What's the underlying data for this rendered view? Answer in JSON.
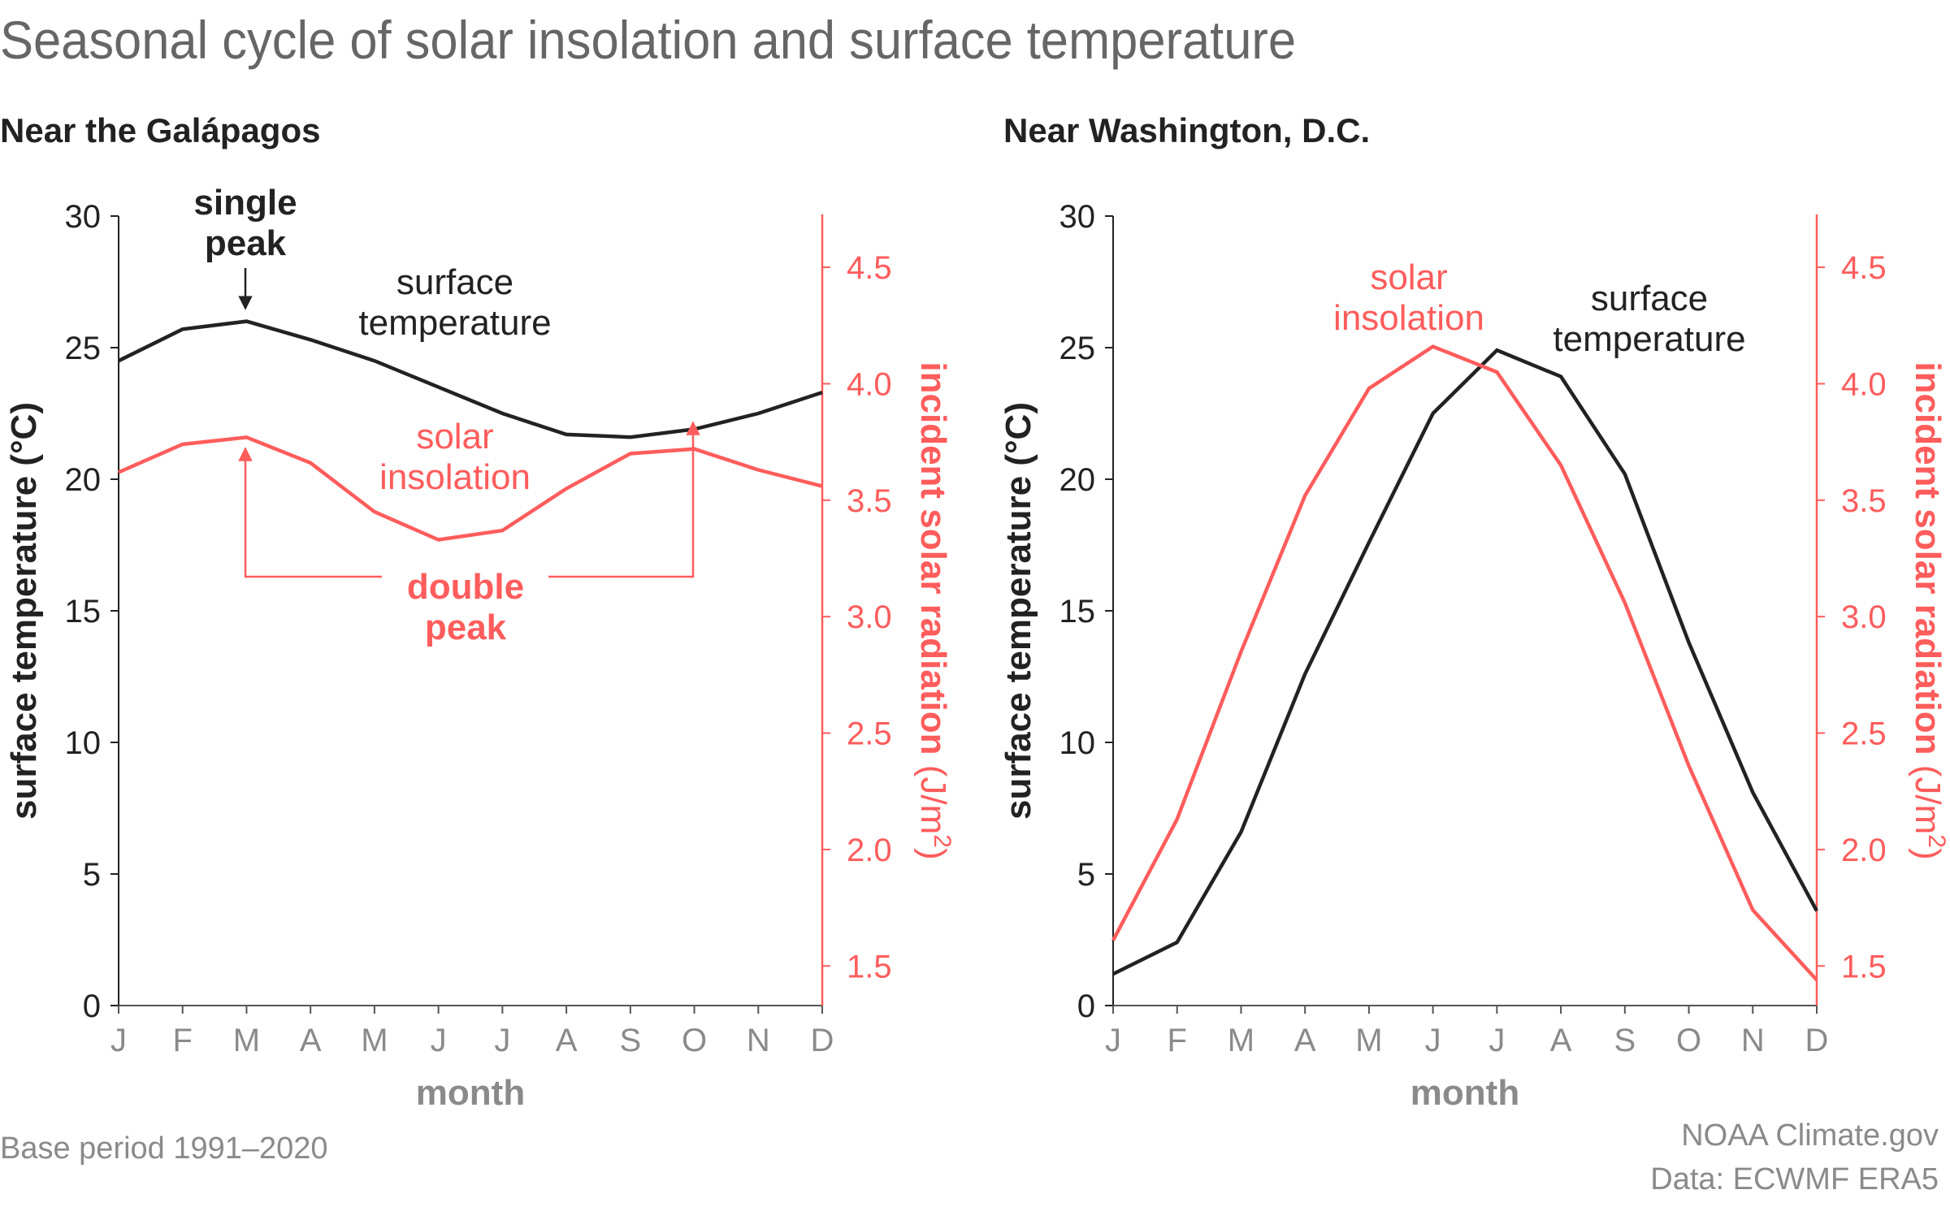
{
  "title": "Seasonal cycle of solar insolation and surface temperature",
  "footer": {
    "base_period": "Base period 1991–2020",
    "credit": "NOAA Climate.gov",
    "data_source": "Data: ECWMF ERA5"
  },
  "colors": {
    "temperature": "#222222",
    "insolation": "#ff5c5c",
    "muted": "#8a8a8a"
  },
  "chart_data": [
    {
      "type": "line",
      "subtitle": "Near the Galápagos",
      "categories": [
        "J",
        "F",
        "M",
        "A",
        "M",
        "J",
        "J",
        "A",
        "S",
        "O",
        "N",
        "D"
      ],
      "xlabel": "month",
      "ylabel_left": "surface temperature (°C)",
      "ylabel_right_main": "incident solar radiation (J/m",
      "ylabel_right_sup": "2",
      "ylabel_right_close": ")",
      "ylim_left": [
        0,
        30
      ],
      "yticks_left": [
        "0",
        "5",
        "10",
        "15",
        "20",
        "25",
        "30"
      ],
      "ylim_right": [
        1.33,
        4.72
      ],
      "yticks_right": [
        "1.5",
        "2.0",
        "2.5",
        "3.0",
        "3.5",
        "4.0",
        "4.5"
      ],
      "series": [
        {
          "name": "surface temperature",
          "axis": "left",
          "values": [
            24.5,
            25.7,
            26.0,
            25.3,
            24.5,
            23.5,
            22.5,
            21.7,
            21.6,
            21.9,
            22.5,
            23.3
          ]
        },
        {
          "name": "solar insolation",
          "axis": "right",
          "values": [
            3.62,
            3.74,
            3.77,
            3.66,
            3.45,
            3.33,
            3.37,
            3.55,
            3.7,
            3.72,
            3.63,
            3.56
          ]
        }
      ],
      "annotations": {
        "single_peak_line1": "single",
        "single_peak_line2": "peak",
        "temp_label_line1": "surface",
        "temp_label_line2": "temperature",
        "insol_label_line1": "solar",
        "insol_label_line2": "insolation",
        "double_peak_line1": "double",
        "double_peak_line2": "peak"
      }
    },
    {
      "type": "line",
      "subtitle": "Near Washington, D.C.",
      "categories": [
        "J",
        "F",
        "M",
        "A",
        "M",
        "J",
        "J",
        "A",
        "S",
        "O",
        "N",
        "D"
      ],
      "xlabel": "month",
      "ylabel_left": "surface temperature (°C)",
      "ylabel_right_main": "incident solar radiation (J/m",
      "ylabel_right_sup": "2",
      "ylabel_right_close": ")",
      "ylim_left": [
        0,
        30
      ],
      "yticks_left": [
        "0",
        "5",
        "10",
        "15",
        "20",
        "25",
        "30"
      ],
      "ylim_right": [
        1.33,
        4.72
      ],
      "yticks_right": [
        "1.5",
        "2.0",
        "2.5",
        "3.0",
        "3.5",
        "4.0",
        "4.5"
      ],
      "series": [
        {
          "name": "surface temperature",
          "axis": "left",
          "values": [
            1.2,
            2.4,
            6.6,
            12.6,
            17.6,
            22.5,
            24.9,
            23.9,
            20.2,
            13.8,
            8.1,
            3.6
          ]
        },
        {
          "name": "solar insolation",
          "axis": "right",
          "values": [
            1.61,
            2.13,
            2.85,
            3.52,
            3.98,
            4.16,
            4.05,
            3.65,
            3.06,
            2.36,
            1.74,
            1.44
          ]
        }
      ],
      "annotations": {
        "insol_label_line1": "solar",
        "insol_label_line2": "insolation",
        "temp_label_line1": "surface",
        "temp_label_line2": "temperature"
      }
    }
  ]
}
